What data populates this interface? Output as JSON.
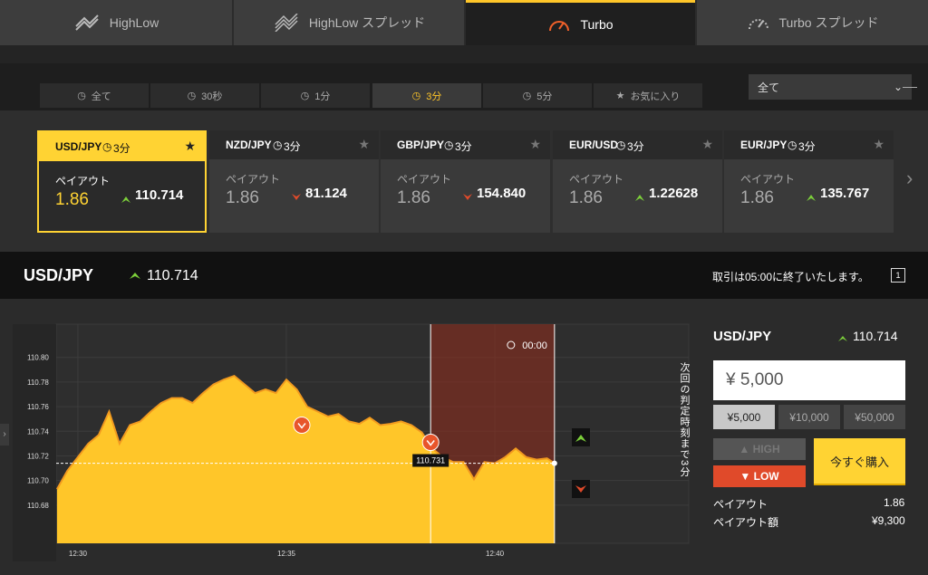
{
  "product_tabs": [
    "HighLow",
    "HighLow スプレッド",
    "Turbo",
    "Turbo スプレッド"
  ],
  "time_tabs": [
    "全て",
    "30秒",
    "1分",
    "3分",
    "5分",
    "お気に入り"
  ],
  "filter": "全て",
  "selected_asset": 0,
  "assets": [
    {
      "name": "USD/JPY",
      "duration": "3分",
      "payout_label": "ペイアウト",
      "payout": "1.86",
      "price": "110.714",
      "direction": "up"
    },
    {
      "name": "NZD/JPY",
      "duration": "3分",
      "payout_label": "ペイアウト",
      "payout": "1.86",
      "price": "81.124",
      "direction": "down"
    },
    {
      "name": "GBP/JPY",
      "duration": "3分",
      "payout_label": "ペイアウト",
      "payout": "1.86",
      "price": "154.840",
      "direction": "down"
    },
    {
      "name": "EUR/USD",
      "duration": "3分",
      "payout_label": "ペイアウト",
      "payout": "1.86",
      "price": "1.22628",
      "direction": "up"
    },
    {
      "name": "EUR/JPY",
      "duration": "3分",
      "payout_label": "ペイアウト",
      "payout": "1.86",
      "price": "135.767",
      "direction": "up"
    }
  ],
  "header": {
    "pair": "USD/JPY",
    "price": "110.714",
    "notice": "取引は05:00に終了いたします。"
  },
  "chart_data": {
    "type": "area",
    "color": "#ffc629",
    "line_color": "#f29a1f",
    "grid": true,
    "x": [
      29.5,
      29.75,
      30,
      30.25,
      30.5,
      30.75,
      31,
      31.25,
      31.5,
      31.75,
      32,
      32.25,
      32.5,
      32.75,
      33,
      33.25,
      33.5,
      33.75,
      34,
      34.25,
      34.5,
      34.75,
      35,
      35.25,
      35.5,
      35.75,
      36,
      36.25,
      36.5,
      36.75,
      37,
      37.25,
      37.5,
      37.75,
      38,
      38.25,
      38.5,
      38.75,
      39,
      39.25,
      39.5,
      39.75,
      40,
      40.25,
      40.5,
      40.75,
      41,
      41.25,
      41.43
    ],
    "values": [
      110.693,
      110.708,
      110.719,
      110.73,
      110.737,
      110.756,
      110.73,
      110.745,
      110.748,
      110.756,
      110.763,
      110.767,
      110.767,
      110.763,
      110.771,
      110.778,
      110.782,
      110.785,
      110.778,
      110.771,
      110.774,
      110.771,
      110.782,
      110.774,
      110.76,
      110.756,
      110.752,
      110.754,
      110.748,
      110.746,
      110.751,
      110.745,
      110.746,
      110.748,
      110.745,
      110.739,
      110.726,
      110.719,
      110.715,
      110.715,
      110.701,
      110.715,
      110.714,
      110.719,
      110.726,
      110.719,
      110.717,
      110.718,
      110.714
    ],
    "xlim": [
      29.48,
      44.65
    ],
    "ylim": [
      110.649,
      110.827
    ],
    "xticks": [
      {
        "value": 30,
        "label": "12:30"
      },
      {
        "value": 35,
        "label": "12:35"
      },
      {
        "value": 40,
        "label": "12:40"
      }
    ],
    "yticks": [
      110.68,
      {
        "value": 110.7,
        "label": "110.70"
      },
      110.72,
      110.74,
      110.76,
      110.78,
      {
        "value": 110.8,
        "label": "110.80"
      }
    ],
    "current_price": 110.714,
    "expiry_zone": [
      38.46,
      41.43
    ],
    "countdown": "00:00",
    "markers": [
      {
        "x": 35.37,
        "value": 110.745
      },
      {
        "x": 38.46,
        "value": 110.731,
        "label": "110.731"
      }
    ],
    "next_judgement": "次回の判定時刻まで3分"
  },
  "order": {
    "pair": "USD/JPY",
    "price": "110.714",
    "amount": "¥ 5,000",
    "presets": [
      "¥5,000",
      "¥10,000",
      "¥50,000"
    ],
    "high": "HIGH",
    "low": "LOW",
    "buy": "今すぐ購入",
    "payout_label": "ペイアウト",
    "payout": "1.86",
    "payout_amount_label": "ペイアウト額",
    "payout_amount": "¥9,300"
  }
}
